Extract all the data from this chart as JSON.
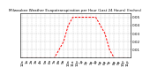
{
  "title": "Milwaukee Weather Evapotranspiration per Hour (Last 24 Hours) (Inches)",
  "hours": [
    0,
    1,
    2,
    3,
    4,
    5,
    6,
    7,
    8,
    9,
    10,
    11,
    12,
    13,
    14,
    15,
    16,
    17,
    18,
    19,
    20,
    21,
    22,
    23
  ],
  "values": [
    0.0,
    0.0,
    0.0,
    0.0,
    0.0,
    0.0,
    0.0,
    0.0,
    0.01,
    0.02,
    0.04,
    0.05,
    0.05,
    0.05,
    0.05,
    0.05,
    0.05,
    0.04,
    0.03,
    0.01,
    0.0,
    0.0,
    0.0,
    0.0
  ],
  "line_color": "#ff0000",
  "bg_color": "#ffffff",
  "grid_color": "#aaaaaa",
  "ylim": [
    0.0,
    0.055
  ],
  "yticks": [
    0.01,
    0.02,
    0.03,
    0.04,
    0.05
  ],
  "title_fontsize": 3.0,
  "tick_fontsize": 3.0
}
